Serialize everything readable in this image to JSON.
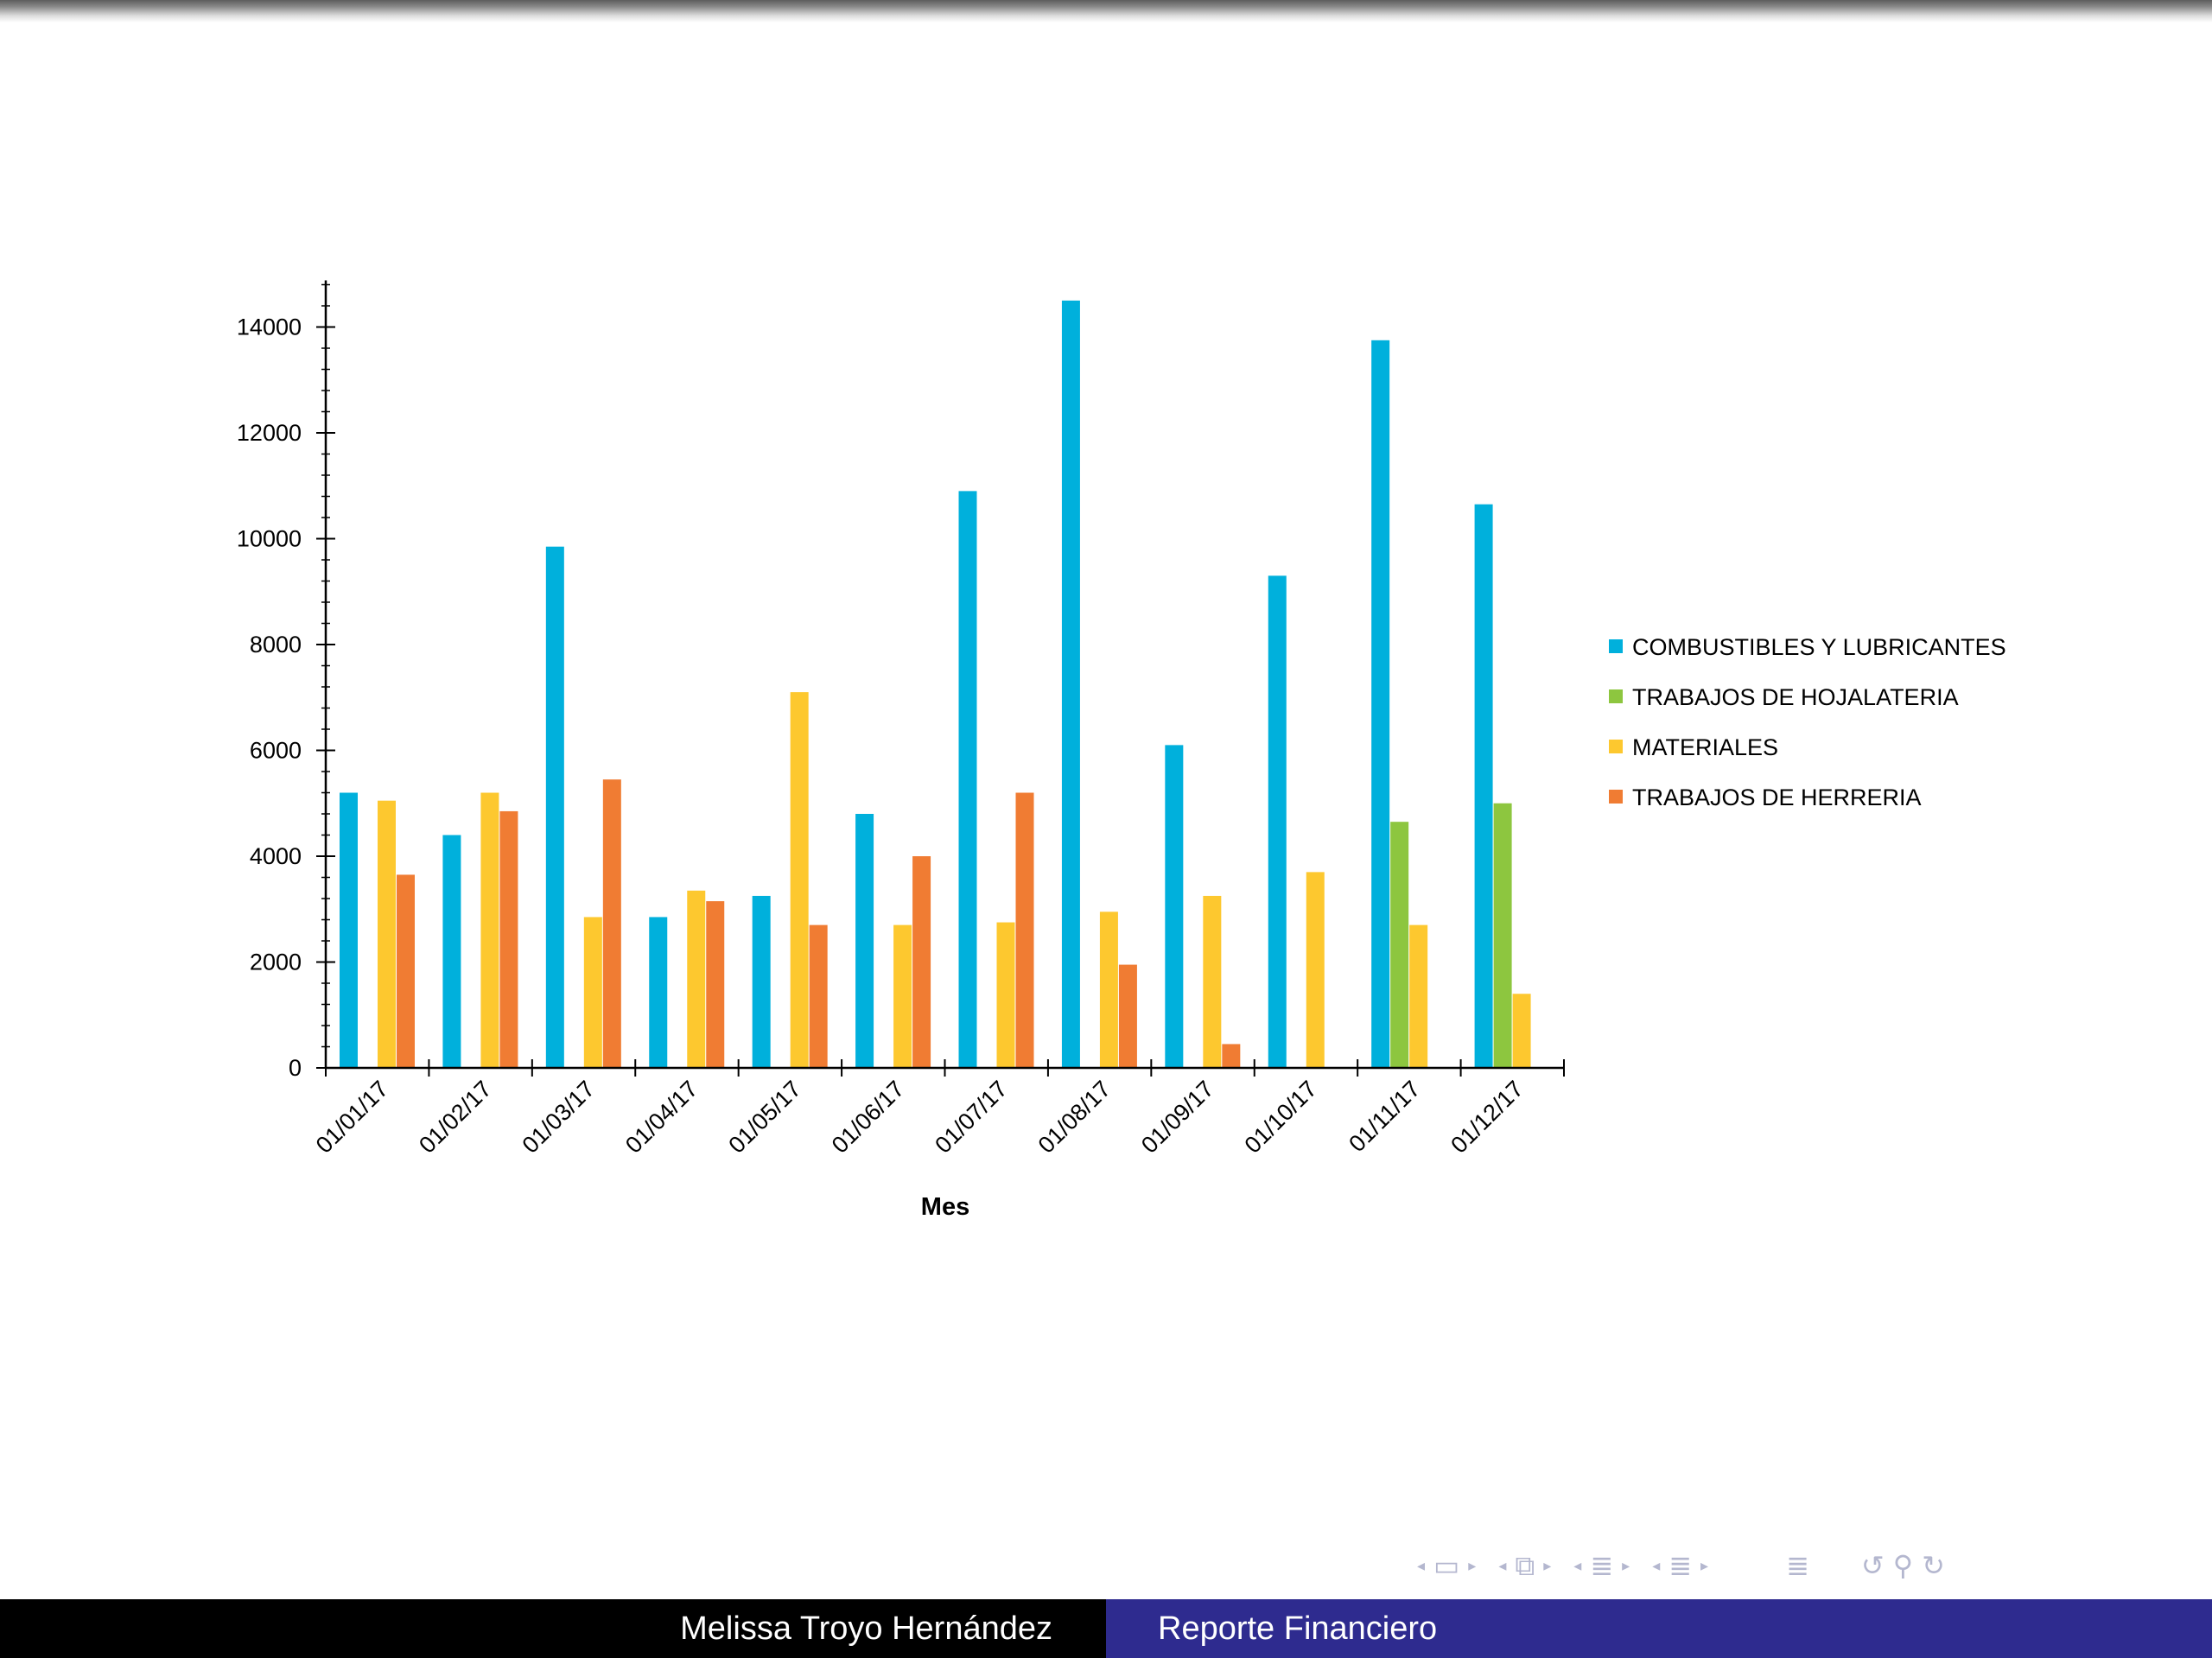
{
  "chart_data": {
    "type": "bar",
    "categories": [
      "01/01/17",
      "01/02/17",
      "01/03/17",
      "01/04/17",
      "01/05/17",
      "01/06/17",
      "01/07/17",
      "01/08/17",
      "01/09/17",
      "01/10/17",
      "01/11/17",
      "01/12/17"
    ],
    "series": [
      {
        "name": "COMBUSTIBLES Y LUBRICANTES",
        "color": "#00b0dc",
        "values": [
          5200,
          4400,
          9850,
          2850,
          3250,
          4800,
          10900,
          14500,
          6100,
          9300,
          13750,
          10650
        ]
      },
      {
        "name": "TRABAJOS DE HOJALATERIA",
        "color": "#8dc63f",
        "values": [
          null,
          null,
          null,
          null,
          null,
          null,
          null,
          null,
          null,
          null,
          4650,
          5000
        ]
      },
      {
        "name": "MATERIALES",
        "color": "#fdc82f",
        "values": [
          5050,
          5200,
          2850,
          3350,
          7100,
          2700,
          2750,
          2950,
          3250,
          3700,
          2700,
          1400
        ]
      },
      {
        "name": "TRABAJOS DE HERRERIA",
        "color": "#f07c33",
        "values": [
          3650,
          4850,
          5450,
          3150,
          2700,
          4000,
          5200,
          1950,
          450,
          null,
          null,
          null
        ]
      }
    ],
    "title": "",
    "xlabel": "Mes",
    "ylabel": "",
    "ylim": [
      0,
      14800
    ],
    "yticks": [
      0,
      2000,
      4000,
      6000,
      8000,
      10000,
      12000,
      14000
    ],
    "ytick_labels": [
      "0",
      "2000",
      "4000",
      "6000",
      "8000",
      "10000",
      "12000",
      "14000"
    ],
    "y_minor_step": 400,
    "legend_position": "right",
    "grid": false
  },
  "navigation": {
    "icons": [
      "nav-left-arrow",
      "frame-icon",
      "nav-right-arrow",
      "nav-left-arrow",
      "frames-stack-icon",
      "nav-right-arrow",
      "nav-left-arrow",
      "section-icon",
      "nav-right-arrow",
      "nav-left-arrow",
      "subsection-icon",
      "nav-right-arrow",
      "toc-icon",
      "undo-icon",
      "zoom-search-icon",
      "redo-icon"
    ]
  },
  "footer": {
    "author": "Melissa Troyo Hernández",
    "title": "Reporte Financiero",
    "left_bg": "#000000",
    "right_bg": "#2e2b8f"
  }
}
